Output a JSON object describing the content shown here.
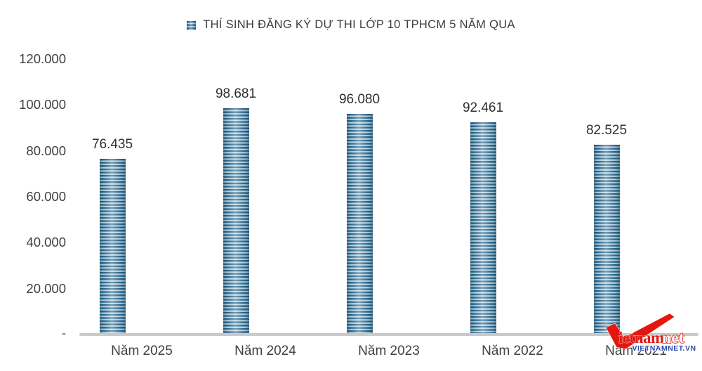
{
  "page": {
    "background": "#ffffff"
  },
  "legend": {
    "marker": "striped-blue-square",
    "position": "top-center"
  },
  "chart_data": {
    "type": "bar",
    "title": "THÍ SINH ĐĂNG KÝ DỰ THI LỚP 10 TPHCM 5 NĂM QUA",
    "categories": [
      "Năm 2025",
      "Năm 2024",
      "Năm 2023",
      "Năm 2022",
      "Năm 2021"
    ],
    "values": [
      76435,
      98681,
      96080,
      92461,
      82525
    ],
    "data_labels": [
      "76.435",
      "98.681",
      "96.080",
      "92.461",
      "82.525"
    ],
    "xlabel": "",
    "ylabel": "",
    "ylim": [
      0,
      120000
    ],
    "ytick_step": 20000,
    "ytick_labels": [
      "-",
      "20.000",
      "40.000",
      "60.000",
      "80.000",
      "100.000",
      "120.000"
    ],
    "grid": false,
    "legend_position": "top-center",
    "bar_stripe_dark": "#2b6a8e",
    "bar_stripe_light": "#cfe2ec",
    "axis_line_color": "#c9c9c9",
    "label_color": "#404040"
  },
  "watermark": {
    "text_main": "ietnam",
    "text_net": "net",
    "text_sub": "VIETNAMNET.VN",
    "main_color": "#e3170f",
    "sub_color": "#2b49a8"
  }
}
